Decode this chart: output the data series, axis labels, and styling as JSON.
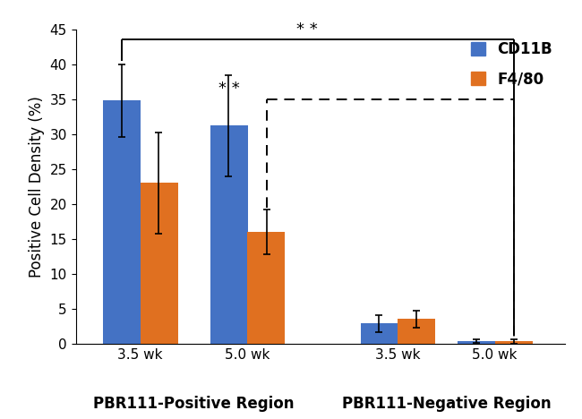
{
  "xtick_labels": [
    "3.5 wk",
    "5.0 wk",
    "3.5 wk",
    "5.0 wk"
  ],
  "xlabel_groups": [
    "PBR111-Positive Region",
    "PBR111-Negative Region"
  ],
  "cd11b_values": [
    34.8,
    31.2,
    2.9,
    0.4
  ],
  "f480_values": [
    23.0,
    16.0,
    3.5,
    0.3
  ],
  "cd11b_errors": [
    5.2,
    7.2,
    1.2,
    0.25
  ],
  "f480_errors": [
    7.2,
    3.2,
    1.2,
    0.35
  ],
  "cd11b_color": "#4472C4",
  "f480_color": "#E07020",
  "ylabel": "Positive Cell Density (%)",
  "ylim": [
    0,
    45
  ],
  "yticks": [
    0,
    5,
    10,
    15,
    20,
    25,
    30,
    35,
    40,
    45
  ],
  "legend_labels": [
    "CD11B",
    "F4/80"
  ],
  "background_color": "#ffffff",
  "bar_width": 0.35,
  "group_positions": [
    1.0,
    2.0,
    3.4,
    4.3
  ]
}
